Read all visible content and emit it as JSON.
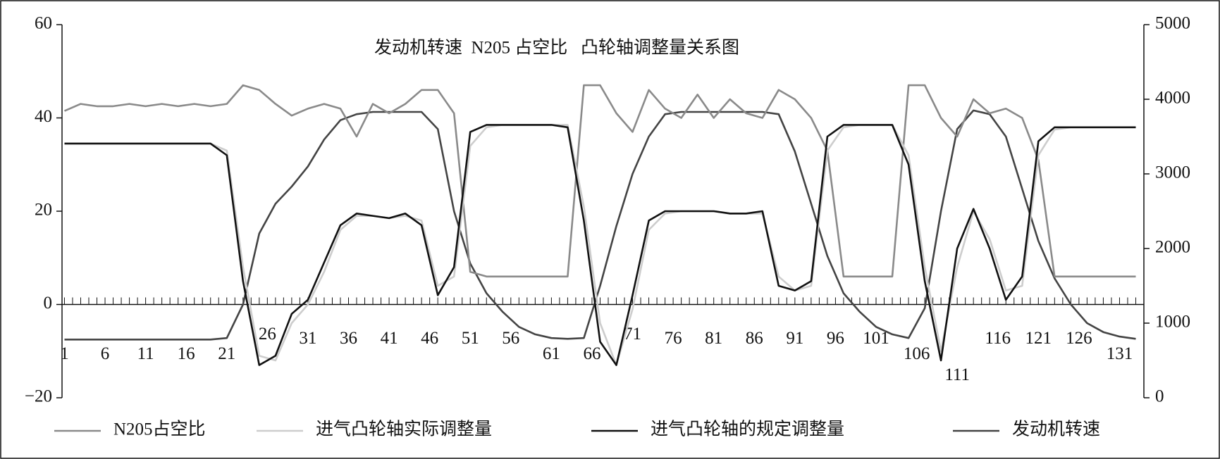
{
  "chart_data": {
    "type": "line",
    "title": "发动机转速  N205 占空比   凸轮轴调整量关系图",
    "x": [
      1,
      3,
      5,
      7,
      9,
      11,
      13,
      15,
      17,
      19,
      21,
      23,
      25,
      27,
      29,
      31,
      33,
      35,
      37,
      39,
      41,
      43,
      45,
      47,
      49,
      51,
      53,
      55,
      57,
      59,
      61,
      63,
      65,
      67,
      69,
      71,
      73,
      75,
      77,
      79,
      81,
      83,
      85,
      87,
      89,
      91,
      93,
      95,
      97,
      99,
      101,
      103,
      105,
      107,
      109,
      111,
      113,
      115,
      117,
      119,
      121,
      123,
      125,
      127,
      129,
      131,
      133
    ],
    "xlim": [
      0.7,
      134
    ],
    "xticks": [
      1,
      6,
      11,
      16,
      21,
      26,
      31,
      36,
      41,
      46,
      51,
      56,
      61,
      66,
      71,
      76,
      81,
      86,
      91,
      96,
      101,
      106,
      111,
      116,
      121,
      126,
      131
    ],
    "ylim": [
      -20,
      60
    ],
    "yticks": [
      {
        "value": -20,
        "label": "−20"
      },
      0,
      20,
      40,
      60
    ],
    "y2lim": [
      0,
      5000
    ],
    "y2ticks": [
      0,
      1000,
      2000,
      3000,
      4000,
      5000
    ],
    "series": [
      {
        "name": "N205占空比",
        "color": "#8a8a8a",
        "values": [
          41.5,
          43,
          42.5,
          42.5,
          43,
          42.5,
          43,
          42.5,
          43,
          42.5,
          43,
          47,
          46,
          43,
          40.5,
          42,
          43,
          42,
          36,
          43,
          41,
          43,
          46,
          46,
          41,
          7,
          6,
          6,
          6,
          6,
          6,
          6,
          47,
          47,
          41,
          37,
          46,
          42,
          40,
          45,
          40,
          44,
          41,
          40,
          46,
          44,
          40,
          33,
          6,
          6,
          6,
          6,
          47,
          47,
          40,
          36,
          44,
          41,
          42,
          40,
          31,
          6,
          6,
          6,
          6,
          6,
          6
        ]
      },
      {
        "name": "进气凸轮轴实际调整量",
        "color": "#cdcdcd",
        "values": [
          34.5,
          34.5,
          34.5,
          34.5,
          34.5,
          34.5,
          34.5,
          34.5,
          34.5,
          34.5,
          33,
          8,
          -11,
          -12,
          -4,
          0,
          7,
          16,
          19,
          19,
          18.5,
          19,
          18,
          4,
          6,
          34,
          38,
          38.5,
          38.5,
          38.5,
          38.5,
          38.5,
          21,
          -4,
          -13,
          -1,
          16,
          19.5,
          20,
          20,
          20,
          19.5,
          19.5,
          19.5,
          6,
          3,
          4,
          33,
          38,
          38.5,
          38.5,
          38.5,
          32,
          8,
          -10,
          8,
          20,
          14,
          3,
          4,
          32,
          37.5,
          38,
          38,
          38,
          38,
          38
        ]
      },
      {
        "name": "进气凸轮轴的规定调整量",
        "color": "#111111",
        "values": [
          34.5,
          34.5,
          34.5,
          34.5,
          34.5,
          34.5,
          34.5,
          34.5,
          34.5,
          34.5,
          32,
          5,
          -13,
          -11,
          -2,
          1,
          9,
          17,
          19.5,
          19,
          18.5,
          19.5,
          17,
          2,
          8,
          37,
          38.5,
          38.5,
          38.5,
          38.5,
          38.5,
          38,
          18,
          -8,
          -13,
          2,
          18,
          20,
          20,
          20,
          20,
          19.5,
          19.5,
          20,
          4,
          3,
          5,
          36,
          38.5,
          38.5,
          38.5,
          38.5,
          30,
          5,
          -12,
          12,
          20.5,
          12,
          1,
          6,
          35,
          38,
          38,
          38,
          38,
          38,
          38
        ]
      },
      {
        "name": "发动机转速",
        "color": "#444444",
        "axis": "y2",
        "values": [
          780,
          780,
          780,
          780,
          780,
          780,
          780,
          780,
          780,
          780,
          800,
          1250,
          2200,
          2600,
          2830,
          3100,
          3460,
          3720,
          3800,
          3830,
          3830,
          3830,
          3830,
          3600,
          2500,
          1800,
          1400,
          1150,
          950,
          850,
          800,
          790,
          800,
          1500,
          2300,
          3000,
          3500,
          3800,
          3830,
          3830,
          3830,
          3830,
          3830,
          3830,
          3800,
          3300,
          2600,
          1900,
          1400,
          1150,
          950,
          850,
          800,
          1200,
          2500,
          3600,
          3850,
          3800,
          3500,
          2800,
          2100,
          1600,
          1250,
          1000,
          880,
          820,
          790
        ]
      }
    ]
  }
}
